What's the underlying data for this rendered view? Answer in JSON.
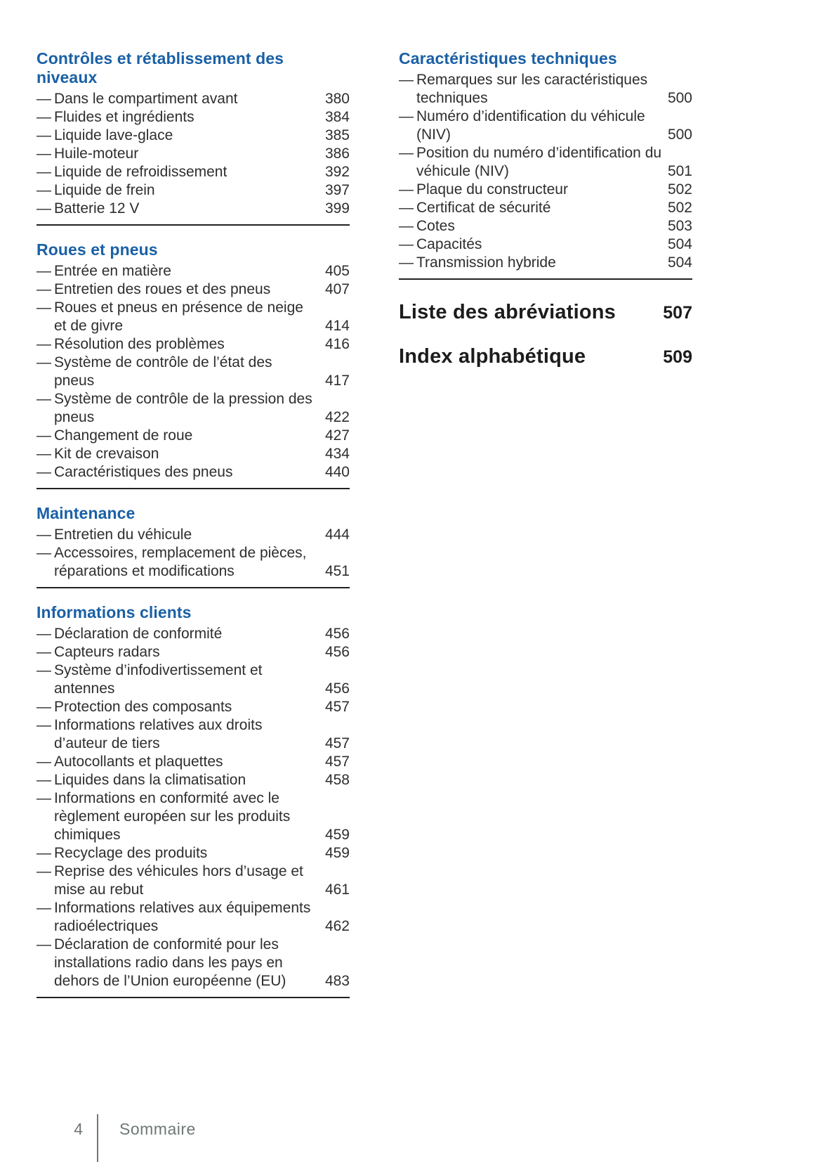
{
  "glyphs": {
    "dash": "—"
  },
  "colors": {
    "heading_blue": "#1a60a5",
    "text_dark": "#2e2e2e",
    "heading_black": "#1c1c1c",
    "rule_dark": "#222222",
    "footer_gray": "#6f7877",
    "page_bg": "#ffffff"
  },
  "columns": {
    "left": {
      "sections": [
        {
          "title": "Contrôles et rétablissement des niveaux",
          "items": [
            {
              "label": "Dans le compartiment avant",
              "page": "380"
            },
            {
              "label": "Fluides et ingrédients",
              "page": "384"
            },
            {
              "label": "Liquide lave-glace",
              "page": "385"
            },
            {
              "label": "Huile-moteur",
              "page": "386"
            },
            {
              "label": "Liquide de refroidissement",
              "page": "392"
            },
            {
              "label": "Liquide de frein",
              "page": "397"
            },
            {
              "label": "Batterie 12 V",
              "page": "399"
            }
          ]
        },
        {
          "title": "Roues et pneus",
          "items": [
            {
              "label": "Entrée en matière",
              "page": "405"
            },
            {
              "label": "Entretien des roues et des pneus",
              "page": "407"
            },
            {
              "label": "Roues et pneus en présence de neige et de givre",
              "page": "414"
            },
            {
              "label": "Résolution des problèmes",
              "page": "416"
            },
            {
              "label": "Système de contrôle de l’état des pneus",
              "page": "417"
            },
            {
              "label": "Système de contrôle de la pression des pneus",
              "page": "422"
            },
            {
              "label": "Changement de roue",
              "page": "427"
            },
            {
              "label": "Kit de crevaison",
              "page": "434"
            },
            {
              "label": "Caractéristiques des pneus",
              "page": "440"
            }
          ]
        },
        {
          "title": "Maintenance",
          "items": [
            {
              "label": "Entretien du véhicule",
              "page": "444"
            },
            {
              "label": "Accessoires, remplacement de pièces, réparations et modifications",
              "page": "451"
            }
          ]
        },
        {
          "title": "Informations clients",
          "items": [
            {
              "label": "Déclaration de conformité",
              "page": "456"
            },
            {
              "label": "Capteurs radars",
              "page": "456"
            },
            {
              "label": "Système d’infodivertissement et antennes",
              "page": "456"
            },
            {
              "label": "Protection des composants",
              "page": "457"
            },
            {
              "label": "Informations relatives aux droits d’auteur de tiers",
              "page": "457"
            },
            {
              "label": "Autocollants et plaquettes",
              "page": "457"
            },
            {
              "label": "Liquides dans la climatisation",
              "page": "458"
            },
            {
              "label": "Informations en conformité avec le règlement européen sur les produits chimiques",
              "page": "459"
            },
            {
              "label": "Recyclage des produits",
              "page": "459"
            },
            {
              "label": "Reprise des véhicules hors d’usage et mise au rebut",
              "page": "461"
            },
            {
              "label": "Informations relatives aux équipements radioélectriques",
              "page": "462"
            },
            {
              "label": "Déclaration de conformité pour les installations radio dans les pays en dehors de l’Union européenne (EU)",
              "page": "483"
            }
          ]
        }
      ]
    },
    "right": {
      "sections": [
        {
          "title": "Caractéristiques techniques",
          "items": [
            {
              "label": "Remarques sur les caractéristiques techniques",
              "page": "500"
            },
            {
              "label": "Numéro d’identification du véhicule (NIV)",
              "page": "500"
            },
            {
              "label": "Position du numéro d’identification du véhicule (NIV)",
              "page": "501"
            },
            {
              "label": "Plaque du constructeur",
              "page": "502"
            },
            {
              "label": "Certificat de sécurité",
              "page": "502"
            },
            {
              "label": "Cotes",
              "page": "503"
            },
            {
              "label": "Capacités",
              "page": "504"
            },
            {
              "label": "Transmission hybride",
              "page": "504"
            }
          ]
        }
      ],
      "standalone": [
        {
          "title": "Liste des abréviations",
          "page": "507"
        },
        {
          "title": "Index alphabétique",
          "page": "509"
        }
      ]
    }
  },
  "footer": {
    "page_number": "4",
    "label": "Sommaire"
  }
}
